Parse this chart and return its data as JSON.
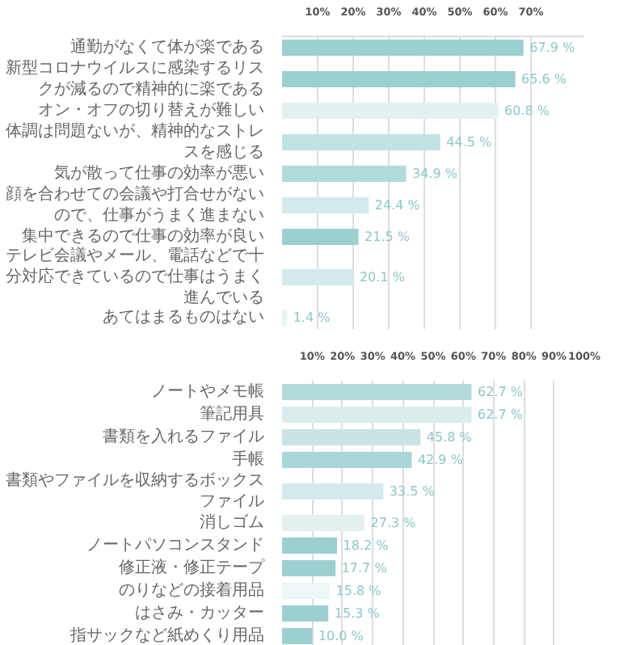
{
  "chart_data": [
    {
      "type": "bar",
      "orientation": "horizontal",
      "categories": [
        "通勤がなくて体が楽である",
        "新型コロナウイルスに感染するリスクが減るので精神的に楽である",
        "オン・オフの切り替えが難しい",
        "体調は問題ないが、精神的なストレスを感じる",
        "気が散って仕事の効率が悪い",
        "顔を合わせての会議や打合せがないので、仕事がうまく進まない",
        "集中できるので仕事の効率が良い",
        "テレビ会議やメール、電話などで十分対応できているので仕事はうまく進んでいる",
        "あてはまるものはない"
      ],
      "values": [
        67.9,
        65.6,
        60.8,
        44.5,
        34.9,
        24.4,
        21.5,
        20.1,
        1.4
      ],
      "value_labels": [
        "67.9 %",
        "65.6 %",
        "60.8 %",
        "44.5 %",
        "34.9 %",
        "24.4 %",
        "21.5 %",
        "20.1 %",
        "1.4 %"
      ],
      "colors": [
        "#9ccfd0",
        "#9ccfd0",
        "#e3f1f1",
        "#c3e2e2",
        "#b3dadb",
        "#d3eaea",
        "#9ccfd0",
        "#d3eaea",
        "#e8f4f4"
      ],
      "xlim": [
        0,
        85
      ],
      "xticks": [
        {
          "value": 10,
          "label": "10%"
        },
        {
          "value": 20,
          "label": "20%"
        },
        {
          "value": 30,
          "label": "30%"
        },
        {
          "value": 40,
          "label": "40%"
        },
        {
          "value": 50,
          "label": "50%"
        },
        {
          "value": 60,
          "label": "60%"
        },
        {
          "value": 70,
          "label": "70%"
        }
      ],
      "grid": "x"
    },
    {
      "type": "bar",
      "orientation": "horizontal",
      "categories": [
        "ノートやメモ帳",
        "筆記用具",
        "書類を入れるファイル",
        "手帳",
        "書類やファイルを収納するボックスファイル",
        "消しゴム",
        "ノートパソコンスタンド",
        "修正液・修正テープ",
        "のりなどの接着用品",
        "はさみ・カッター",
        "指サックなど紙めくり用品"
      ],
      "values": [
        62.7,
        62.7,
        45.8,
        42.9,
        33.5,
        27.3,
        18.2,
        17.7,
        15.8,
        15.3,
        10.0
      ],
      "value_labels": [
        "62.7 %",
        "62.7 %",
        "45.8 %",
        "42.9 %",
        "33.5 %",
        "27.3 %",
        "18.2 %",
        "17.7 %",
        "15.8 %",
        "15.3 %",
        "10.0 %"
      ],
      "colors": [
        "#b3dadb",
        "#d9eded",
        "#c8e4e4",
        "#a9d5d6",
        "#d3eaea",
        "#e3f1f1",
        "#9ccfd0",
        "#9ccfd0",
        "#eef7f7",
        "#9ccfd0",
        "#9ccfd0"
      ],
      "xlim": [
        0,
        100
      ],
      "xticks": [
        {
          "value": 10,
          "label": "10%"
        },
        {
          "value": 20,
          "label": "20%"
        },
        {
          "value": 30,
          "label": "30%"
        },
        {
          "value": 40,
          "label": "40%"
        },
        {
          "value": 50,
          "label": "50%"
        },
        {
          "value": 60,
          "label": "60%"
        },
        {
          "value": 70,
          "label": "70%"
        },
        {
          "value": 80,
          "label": "80%"
        },
        {
          "value": 90,
          "label": "90%"
        },
        {
          "value": 100,
          "label": "100%"
        }
      ],
      "grid": "x"
    }
  ]
}
